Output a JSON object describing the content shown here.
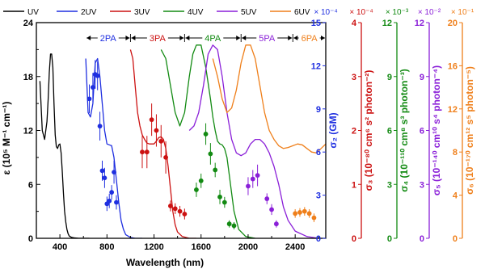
{
  "chart_data": {
    "type": "line",
    "xlabel": "Wavelength (nm)",
    "xlim": [
      200,
      2660
    ],
    "x_ticks": [
      400,
      800,
      1200,
      1600,
      2000,
      2400
    ],
    "ylabel": "ε (10⁵ M⁻¹ cm⁻¹)",
    "ylim": [
      0,
      24
    ],
    "y_ticks": [
      0,
      6,
      12,
      18,
      24
    ],
    "legend": {
      "placement": "top",
      "entries": [
        "UV",
        "2UV",
        "3UV",
        "4UV",
        "5UV",
        "6UV"
      ]
    },
    "bands": [
      {
        "label": "2PA",
        "x_from": 620,
        "x_to": 1000,
        "color": "#1f2fe0"
      },
      {
        "label": "3PA",
        "x_from": 1000,
        "x_to": 1460,
        "color": "#cc1111"
      },
      {
        "label": "4PA",
        "x_from": 1460,
        "x_to": 1940,
        "color": "#128a12"
      },
      {
        "label": "5PA",
        "x_from": 1940,
        "x_to": 2380,
        "color": "#8a1fd8"
      },
      {
        "label": "6PA",
        "x_from": 2380,
        "x_to": 2660,
        "color": "#ef7f1a"
      }
    ],
    "right_axes": [
      {
        "name": "σ2",
        "label": "σ₂ (GM)",
        "multiplier": "× 10⁻⁴",
        "ylim": [
          0,
          15
        ],
        "ticks": [
          0,
          3,
          6,
          9,
          12,
          15
        ],
        "color": "#1f2fe0"
      },
      {
        "name": "σ3",
        "label": "σ₃ (10⁻⁸⁰ cm⁶ s² photon⁻²)",
        "multiplier": "× 10⁻⁴",
        "ylim": [
          0,
          4
        ],
        "ticks": [
          0,
          1,
          2,
          3,
          4
        ],
        "color": "#cc1111"
      },
      {
        "name": "σ4",
        "label": "σ₄ (10⁻¹¹⁰ cm⁸ s³ photon⁻³)",
        "multiplier": "× 10⁻³",
        "ylim": [
          0,
          12
        ],
        "ticks": [
          0,
          3,
          6,
          9,
          12
        ],
        "color": "#128a12"
      },
      {
        "name": "σ5",
        "label": "σ₅ (10⁻¹⁴⁰ cm¹⁰ s⁴ photon⁻⁴)",
        "multiplier": "× 10⁻²",
        "ylim": [
          0,
          12
        ],
        "ticks": [
          0,
          3,
          6,
          9,
          12
        ],
        "color": "#8a1fd8"
      },
      {
        "name": "σ6",
        "label": "σ₆ (10⁻¹⁷⁰ cm¹² s⁵ photon⁻⁵)",
        "multiplier": "× 10⁻¹",
        "ylim": [
          0,
          20
        ],
        "ticks": [
          0,
          4,
          8,
          12,
          16,
          20
        ],
        "color": "#ef7f1a"
      }
    ],
    "series": [
      {
        "name": "UV",
        "color": "#000000",
        "x": [
          230,
          250,
          270,
          290,
          300,
          310,
          320,
          330,
          340,
          350,
          360,
          370,
          380,
          390,
          400,
          410,
          420,
          430,
          440,
          450,
          460,
          470,
          480,
          500,
          520,
          560,
          600,
          650
        ],
        "y": [
          17.5,
          12,
          11,
          13,
          15.5,
          18.5,
          20.5,
          20.5,
          19,
          15,
          11.5,
          10.2,
          10,
          10.4,
          10.5,
          9.5,
          7.5,
          5,
          3,
          1.8,
          1,
          0.5,
          0.25,
          0.1,
          0.05,
          0,
          0,
          0
        ]
      },
      {
        "name": "2UV",
        "color": "#1f2fe0",
        "x": [
          620,
          640,
          660,
          680,
          700,
          720,
          740,
          760,
          780,
          800,
          820,
          840,
          860,
          880,
          900,
          920,
          940,
          960,
          1000,
          1040,
          1100
        ],
        "y": [
          20,
          14,
          13.5,
          15,
          19.5,
          20,
          18,
          15,
          12,
          10.5,
          10.4,
          10.3,
          9,
          6.5,
          4,
          2,
          1,
          0.4,
          0.1,
          0,
          0
        ]
      },
      {
        "name": "3UV",
        "color": "#cc1111",
        "x": [
          1000,
          1020,
          1040,
          1060,
          1080,
          1100,
          1120,
          1140,
          1160,
          1180,
          1200,
          1220,
          1240,
          1260,
          1280,
          1300,
          1320,
          1340,
          1360,
          1380,
          1400,
          1440,
          1500,
          1560
        ],
        "y": [
          21,
          20,
          17,
          14,
          12.5,
          11.5,
          11,
          10.6,
          10.5,
          10.5,
          10.5,
          10.8,
          11.2,
          11.3,
          11,
          10,
          8,
          5.5,
          3,
          1.5,
          0.7,
          0.2,
          0,
          0
        ]
      },
      {
        "name": "4UV",
        "color": "#128a12",
        "x": [
          1260,
          1300,
          1340,
          1380,
          1420,
          1460,
          1500,
          1530,
          1560,
          1600,
          1640,
          1680,
          1700,
          1720,
          1740,
          1760,
          1780,
          1800,
          1820,
          1840,
          1860,
          1880,
          1920,
          1980,
          2060
        ],
        "y": [
          21,
          20,
          17,
          14,
          12.5,
          14,
          18,
          20.5,
          21.5,
          21.5,
          19,
          15.5,
          13.5,
          12,
          10.8,
          10.5,
          10.4,
          10,
          9,
          7,
          5,
          3,
          1,
          0.2,
          0
        ]
      },
      {
        "name": "5UV",
        "color": "#8a1fd8",
        "x": [
          1500,
          1540,
          1580,
          1620,
          1660,
          1700,
          1740,
          1780,
          1820,
          1860,
          1900,
          1940,
          1980,
          2020,
          2060,
          2100,
          2140,
          2180,
          2220,
          2260,
          2300,
          2340,
          2400,
          2500,
          2600
        ],
        "y": [
          12,
          12.5,
          14,
          17,
          20.5,
          21.5,
          21,
          18,
          14,
          11,
          9.5,
          9.2,
          9.5,
          10.5,
          11,
          11,
          10.5,
          9.5,
          8,
          6,
          3.5,
          2,
          0.8,
          0.2,
          0
        ]
      },
      {
        "name": "6UV",
        "color": "#ef7f1a",
        "x": [
          1700,
          1740,
          1780,
          1820,
          1860,
          1900,
          1940,
          1980,
          2020,
          2060,
          2100,
          2140,
          2180,
          2220,
          2260,
          2300,
          2340,
          2380,
          2420,
          2460,
          2500,
          2540,
          2580,
          2620,
          2660
        ],
        "y": [
          20,
          18,
          15.5,
          14,
          14.5,
          16.5,
          19.5,
          21.5,
          21.5,
          20,
          17,
          14,
          12,
          11,
          10.3,
          10,
          10.1,
          10.3,
          10.5,
          10.4,
          10,
          9.6,
          9.5,
          10,
          10.5
        ]
      }
    ],
    "points": [
      {
        "name": "σ2",
        "axis": "σ2",
        "color": "#1f2fe0",
        "x": [
          650,
          680,
          700,
          720,
          740,
          760,
          780,
          800,
          820,
          840,
          860,
          880
        ],
        "y": [
          9.7,
          10.5,
          11.4,
          11.3,
          7.8,
          4.7,
          4.2,
          2.4,
          2.6,
          3.2,
          4.6,
          2.5
        ],
        "err": [
          1.0,
          1.0,
          1.0,
          1.0,
          1.0,
          0.7,
          0.7,
          0.5,
          0.5,
          0.5,
          0.8,
          0.5
        ]
      },
      {
        "name": "σ3",
        "axis": "σ3",
        "color": "#cc1111",
        "x": [
          1100,
          1140,
          1180,
          1220,
          1260,
          1300,
          1340,
          1380,
          1420,
          1460
        ],
        "y": [
          1.6,
          1.6,
          2.2,
          2.0,
          1.8,
          1.5,
          0.6,
          0.55,
          0.5,
          0.45
        ],
        "err": [
          0.3,
          0.3,
          0.3,
          0.3,
          0.3,
          0.3,
          0.1,
          0.1,
          0.1,
          0.1
        ]
      },
      {
        "name": "σ4",
        "axis": "σ4",
        "color": "#128a12",
        "x": [
          1560,
          1600,
          1640,
          1680,
          1720,
          1760,
          1800,
          1840,
          1880
        ],
        "y": [
          2.7,
          3.2,
          5.8,
          4.7,
          3.8,
          2.3,
          2.0,
          0.8,
          0.7
        ],
        "err": [
          0.4,
          0.4,
          0.6,
          0.6,
          0.4,
          0.4,
          0.3,
          0.2,
          0.2
        ]
      },
      {
        "name": "σ5",
        "axis": "σ5",
        "color": "#8a1fd8",
        "x": [
          2000,
          2040,
          2080,
          2160,
          2200,
          2240
        ],
        "y": [
          2.9,
          3.3,
          3.5,
          2.2,
          1.6,
          0.8
        ],
        "err": [
          0.5,
          0.5,
          0.6,
          0.3,
          0.3,
          0.2
        ]
      },
      {
        "name": "σ6",
        "axis": "σ6",
        "color": "#ef7f1a",
        "x": [
          2400,
          2440,
          2480,
          2520,
          2560
        ],
        "y": [
          2.3,
          2.4,
          2.5,
          2.3,
          1.9
        ],
        "err": [
          0.4,
          0.4,
          0.4,
          0.4,
          0.4
        ]
      }
    ]
  }
}
